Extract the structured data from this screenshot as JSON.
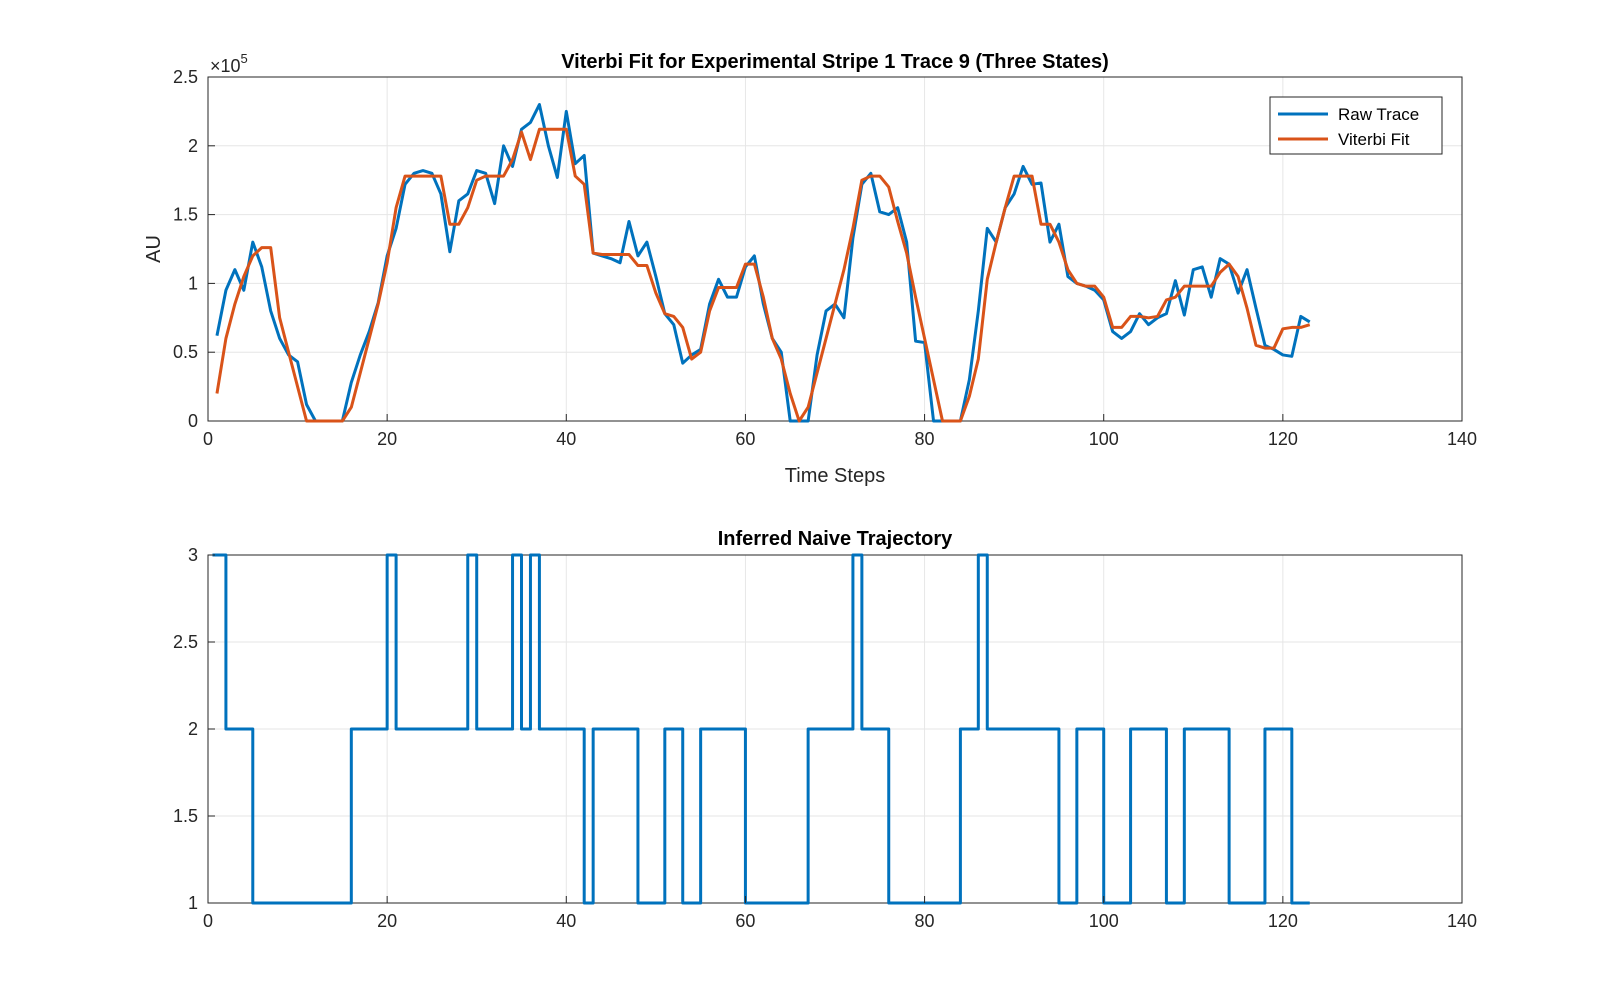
{
  "chart_data": [
    {
      "type": "line",
      "title": "Viterbi Fit for Experimental Stripe 1 Trace 9 (Three States)",
      "xlabel": "Time Steps",
      "ylabel": "AU",
      "y_exponent_label": "×10",
      "y_exponent_power": "5",
      "xlim": [
        0,
        140
      ],
      "ylim": [
        0,
        2.5
      ],
      "y_scale_note": "values in units of 1e5",
      "xticks": [
        0,
        20,
        40,
        60,
        80,
        100,
        120,
        140
      ],
      "yticks": [
        0,
        0.5,
        1,
        1.5,
        2,
        2.5
      ],
      "xtick_labels": [
        "0",
        "20",
        "40",
        "60",
        "80",
        "100",
        "120",
        "140"
      ],
      "ytick_labels": [
        "0",
        "0.5",
        "1",
        "1.5",
        "2",
        "2.5"
      ],
      "grid": true,
      "legend_position": "top-right",
      "x": [
        1,
        2,
        3,
        4,
        5,
        6,
        7,
        8,
        9,
        10,
        11,
        12,
        13,
        14,
        15,
        16,
        17,
        18,
        19,
        20,
        21,
        22,
        23,
        24,
        25,
        26,
        27,
        28,
        29,
        30,
        31,
        32,
        33,
        34,
        35,
        36,
        37,
        38,
        39,
        40,
        41,
        42,
        43,
        44,
        45,
        46,
        47,
        48,
        49,
        50,
        51,
        52,
        53,
        54,
        55,
        56,
        57,
        58,
        59,
        60,
        61,
        62,
        63,
        64,
        65,
        66,
        67,
        68,
        69,
        70,
        71,
        72,
        73,
        74,
        75,
        76,
        77,
        78,
        79,
        80,
        81,
        82,
        83,
        84,
        85,
        86,
        87,
        88,
        89,
        90,
        91,
        92,
        93,
        94,
        95,
        96,
        97,
        98,
        99,
        100,
        101,
        102,
        103,
        104,
        105,
        106,
        107,
        108,
        109,
        110,
        111,
        112,
        113,
        114,
        115,
        116,
        117,
        118,
        119,
        120,
        121,
        122,
        123
      ],
      "series": [
        {
          "name": "Raw Trace",
          "color": "#0072BD",
          "values": [
            0.62,
            0.95,
            1.1,
            0.95,
            1.3,
            1.12,
            0.8,
            0.6,
            0.48,
            0.43,
            0.12,
            0.0,
            0.0,
            0.0,
            0.0,
            0.28,
            0.48,
            0.65,
            0.86,
            1.2,
            1.4,
            1.72,
            1.8,
            1.82,
            1.8,
            1.65,
            1.23,
            1.6,
            1.65,
            1.82,
            1.8,
            1.58,
            2.0,
            1.85,
            2.12,
            2.17,
            2.3,
            2.0,
            1.77,
            2.25,
            1.87,
            1.93,
            1.22,
            1.2,
            1.18,
            1.15,
            1.45,
            1.2,
            1.3,
            1.05,
            0.78,
            0.7,
            0.42,
            0.48,
            0.52,
            0.85,
            1.03,
            0.9,
            0.9,
            1.12,
            1.2,
            0.85,
            0.6,
            0.5,
            0.0,
            0.0,
            0.0,
            0.48,
            0.8,
            0.85,
            0.75,
            1.33,
            1.72,
            1.8,
            1.52,
            1.5,
            1.55,
            1.3,
            0.58,
            0.57,
            0.0,
            0.0,
            0.0,
            0.0,
            0.3,
            0.8,
            1.4,
            1.3,
            1.55,
            1.65,
            1.85,
            1.72,
            1.73,
            1.3,
            1.43,
            1.05,
            1.0,
            0.98,
            0.95,
            0.88,
            0.65,
            0.6,
            0.65,
            0.78,
            0.7,
            0.75,
            0.78,
            1.02,
            0.77,
            1.1,
            1.12,
            0.9,
            1.18,
            1.14,
            0.93,
            1.1,
            0.82,
            0.55,
            0.52,
            0.48,
            0.47,
            0.76,
            0.72
          ]
        },
        {
          "name": "Viterbi Fit",
          "color": "#D95319",
          "values": [
            0.2,
            0.6,
            0.85,
            1.05,
            1.2,
            1.26,
            1.26,
            0.75,
            0.5,
            0.25,
            0.0,
            0.0,
            0.0,
            0.0,
            0.0,
            0.1,
            0.35,
            0.6,
            0.85,
            1.15,
            1.55,
            1.78,
            1.78,
            1.78,
            1.78,
            1.78,
            1.43,
            1.43,
            1.55,
            1.75,
            1.78,
            1.78,
            1.78,
            1.9,
            2.1,
            1.9,
            2.12,
            2.12,
            2.12,
            2.12,
            1.78,
            1.72,
            1.22,
            1.21,
            1.21,
            1.21,
            1.21,
            1.13,
            1.13,
            0.93,
            0.78,
            0.76,
            0.68,
            0.45,
            0.5,
            0.8,
            0.97,
            0.97,
            0.97,
            1.14,
            1.14,
            0.9,
            0.6,
            0.45,
            0.2,
            0.0,
            0.1,
            0.35,
            0.6,
            0.85,
            1.1,
            1.4,
            1.75,
            1.78,
            1.78,
            1.7,
            1.45,
            1.22,
            0.9,
            0.6,
            0.3,
            0.0,
            0.0,
            0.0,
            0.18,
            0.45,
            1.03,
            1.3,
            1.55,
            1.78,
            1.78,
            1.78,
            1.43,
            1.43,
            1.3,
            1.1,
            1.0,
            0.98,
            0.98,
            0.9,
            0.68,
            0.68,
            0.76,
            0.76,
            0.75,
            0.76,
            0.88,
            0.9,
            0.98,
            0.98,
            0.98,
            0.98,
            1.08,
            1.14,
            1.05,
            0.82,
            0.55,
            0.53,
            0.53,
            0.67,
            0.68,
            0.68,
            0.7
          ]
        }
      ]
    },
    {
      "type": "line",
      "title": "Inferred Naive Trajectory",
      "xlabel": "",
      "ylabel": "",
      "xlim": [
        0,
        140
      ],
      "ylim": [
        1,
        3
      ],
      "xticks": [
        0,
        20,
        40,
        60,
        80,
        100,
        120,
        140
      ],
      "yticks": [
        1,
        1.5,
        2,
        2.5,
        3
      ],
      "xtick_labels": [
        "0",
        "20",
        "40",
        "60",
        "80",
        "100",
        "120",
        "140"
      ],
      "ytick_labels": [
        "1",
        "1.5",
        "2",
        "2.5",
        "3"
      ],
      "grid": true,
      "step": true,
      "series": [
        {
          "color": "#0072BD",
          "points": [
            [
              0.5,
              3
            ],
            [
              2,
              3
            ],
            [
              2,
              2
            ],
            [
              5,
              2
            ],
            [
              5,
              1
            ],
            [
              16,
              1
            ],
            [
              16,
              2
            ],
            [
              20,
              2
            ],
            [
              20,
              3
            ],
            [
              21,
              3
            ],
            [
              21,
              2
            ],
            [
              29,
              2
            ],
            [
              29,
              3
            ],
            [
              30,
              3
            ],
            [
              30,
              2
            ],
            [
              34,
              2
            ],
            [
              34,
              3
            ],
            [
              35,
              3
            ],
            [
              35,
              2
            ],
            [
              36,
              2
            ],
            [
              36,
              3
            ],
            [
              37,
              3
            ],
            [
              37,
              2
            ],
            [
              42,
              2
            ],
            [
              42,
              1
            ],
            [
              43,
              1
            ],
            [
              43,
              2
            ],
            [
              48,
              2
            ],
            [
              48,
              1
            ],
            [
              51,
              1
            ],
            [
              51,
              2
            ],
            [
              53,
              2
            ],
            [
              53,
              1
            ],
            [
              55,
              1
            ],
            [
              55,
              2
            ],
            [
              60,
              2
            ],
            [
              60,
              1
            ],
            [
              67,
              1
            ],
            [
              67,
              2
            ],
            [
              72,
              2
            ],
            [
              72,
              3
            ],
            [
              73,
              3
            ],
            [
              73,
              2
            ],
            [
              76,
              2
            ],
            [
              76,
              1
            ],
            [
              84,
              1
            ],
            [
              84,
              2
            ],
            [
              86,
              2
            ],
            [
              86,
              3
            ],
            [
              87,
              3
            ],
            [
              87,
              2
            ],
            [
              95,
              2
            ],
            [
              95,
              1
            ],
            [
              97,
              1
            ],
            [
              97,
              2
            ],
            [
              100,
              2
            ],
            [
              100,
              1
            ],
            [
              103,
              1
            ],
            [
              103,
              2
            ],
            [
              107,
              2
            ],
            [
              107,
              1
            ],
            [
              109,
              1
            ],
            [
              109,
              2
            ],
            [
              114,
              2
            ],
            [
              114,
              1
            ],
            [
              118,
              1
            ],
            [
              118,
              2
            ],
            [
              121,
              2
            ],
            [
              121,
              1
            ],
            [
              123,
              1
            ]
          ]
        }
      ]
    }
  ]
}
